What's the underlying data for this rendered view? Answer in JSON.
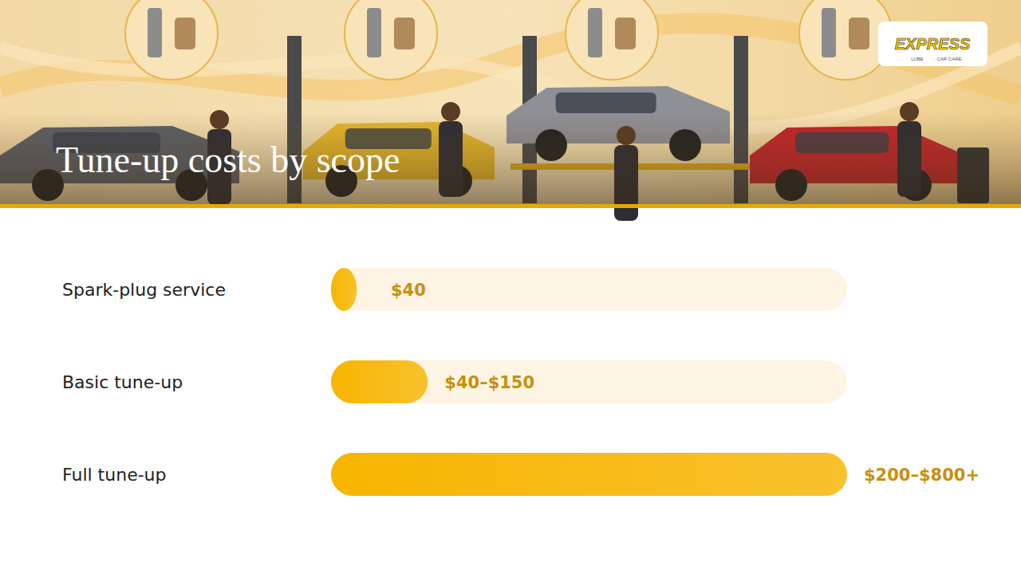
{
  "chart_data": {
    "type": "bar",
    "orientation": "horizontal",
    "title": "Tune-up costs by scope",
    "categories": [
      "Spark-plug service",
      "Basic tune-up",
      "Full tune-up"
    ],
    "values": [
      40,
      150,
      800
    ],
    "value_labels": [
      "$40",
      "$40–$150",
      "$200–$800+"
    ],
    "data_labels": true,
    "xlim": [
      0,
      800
    ],
    "tick_labels": false,
    "grid": false,
    "color": "#f7b500",
    "annotations": [
      "EXPRESS",
      "LUBE",
      "CAR CARE"
    ]
  }
}
